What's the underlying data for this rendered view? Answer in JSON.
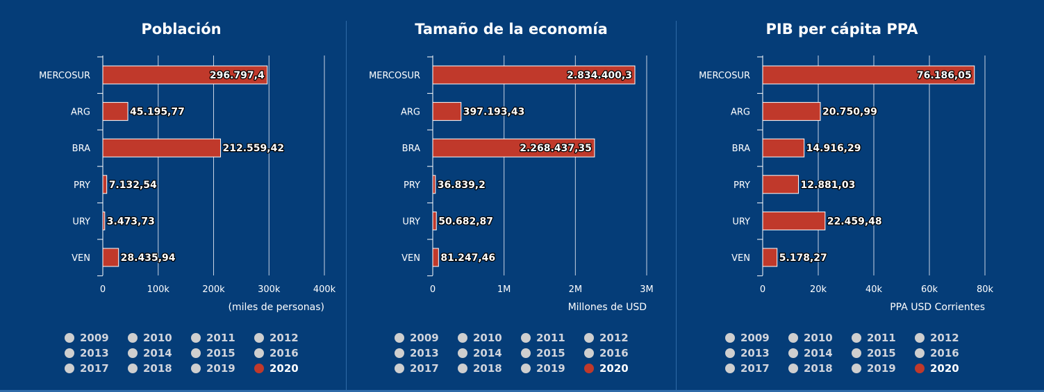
{
  "colors": {
    "background": "#053d78",
    "bar": "#c0392b",
    "bar_border": "#ffffff",
    "grid": "#c9d4e3",
    "legend_inactive": "#cfcfcf",
    "legend_active": "#c0392b"
  },
  "legend": {
    "years": [
      "2009",
      "2010",
      "2011",
      "2012",
      "2013",
      "2014",
      "2015",
      "2016",
      "2017",
      "2018",
      "2019",
      "2020"
    ],
    "selected": "2020"
  },
  "chart_data": [
    {
      "type": "bar",
      "orientation": "horizontal",
      "title": "Población",
      "categories": [
        "MERCOSUR",
        "ARG",
        "BRA",
        "PRY",
        "URY",
        "VEN"
      ],
      "values": [
        296797.4,
        45195.77,
        212559.42,
        7132.54,
        3473.73,
        28435.94
      ],
      "value_labels": [
        "296.797,4",
        "45.195,77",
        "212.559,42",
        "7.132,54",
        "3.473,73",
        "28.435,94"
      ],
      "xlim": [
        0,
        400000
      ],
      "ticks": [
        0,
        100000,
        200000,
        300000,
        400000
      ],
      "tick_labels": [
        "0",
        "100k",
        "200k",
        "300k",
        "400k"
      ],
      "xlabel": "(miles de personas)",
      "grid": true
    },
    {
      "type": "bar",
      "orientation": "horizontal",
      "title": "Tamaño de la economía",
      "categories": [
        "MERCOSUR",
        "ARG",
        "BRA",
        "PRY",
        "URY",
        "VEN"
      ],
      "values": [
        2834400.3,
        397193.43,
        2268437.35,
        36839.2,
        50682.87,
        81247.46
      ],
      "value_labels": [
        "2.834.400,3",
        "397.193,43",
        "2.268.437,35",
        "36.839,2",
        "50.682,87",
        "81.247,46"
      ],
      "xlim": [
        0,
        3000000
      ],
      "ticks": [
        0,
        1000000,
        2000000,
        3000000
      ],
      "tick_labels": [
        "0",
        "1M",
        "2M",
        "3M"
      ],
      "xlabel": "Millones de USD",
      "grid": true
    },
    {
      "type": "bar",
      "orientation": "horizontal",
      "title": "PIB per cápita PPA",
      "categories": [
        "MERCOSUR",
        "ARG",
        "BRA",
        "PRY",
        "URY",
        "VEN"
      ],
      "values": [
        76186.05,
        20750.99,
        14916.29,
        12881.03,
        22459.48,
        5178.27
      ],
      "value_labels": [
        "76.186,05",
        "20.750,99",
        "14.916,29",
        "12.881,03",
        "22.459,48",
        "5.178,27"
      ],
      "xlim": [
        0,
        80000
      ],
      "ticks": [
        0,
        20000,
        40000,
        60000,
        80000
      ],
      "tick_labels": [
        "0",
        "20k",
        "40k",
        "60k",
        "80k"
      ],
      "xlabel": "PPA USD Corrientes",
      "grid": true
    }
  ]
}
